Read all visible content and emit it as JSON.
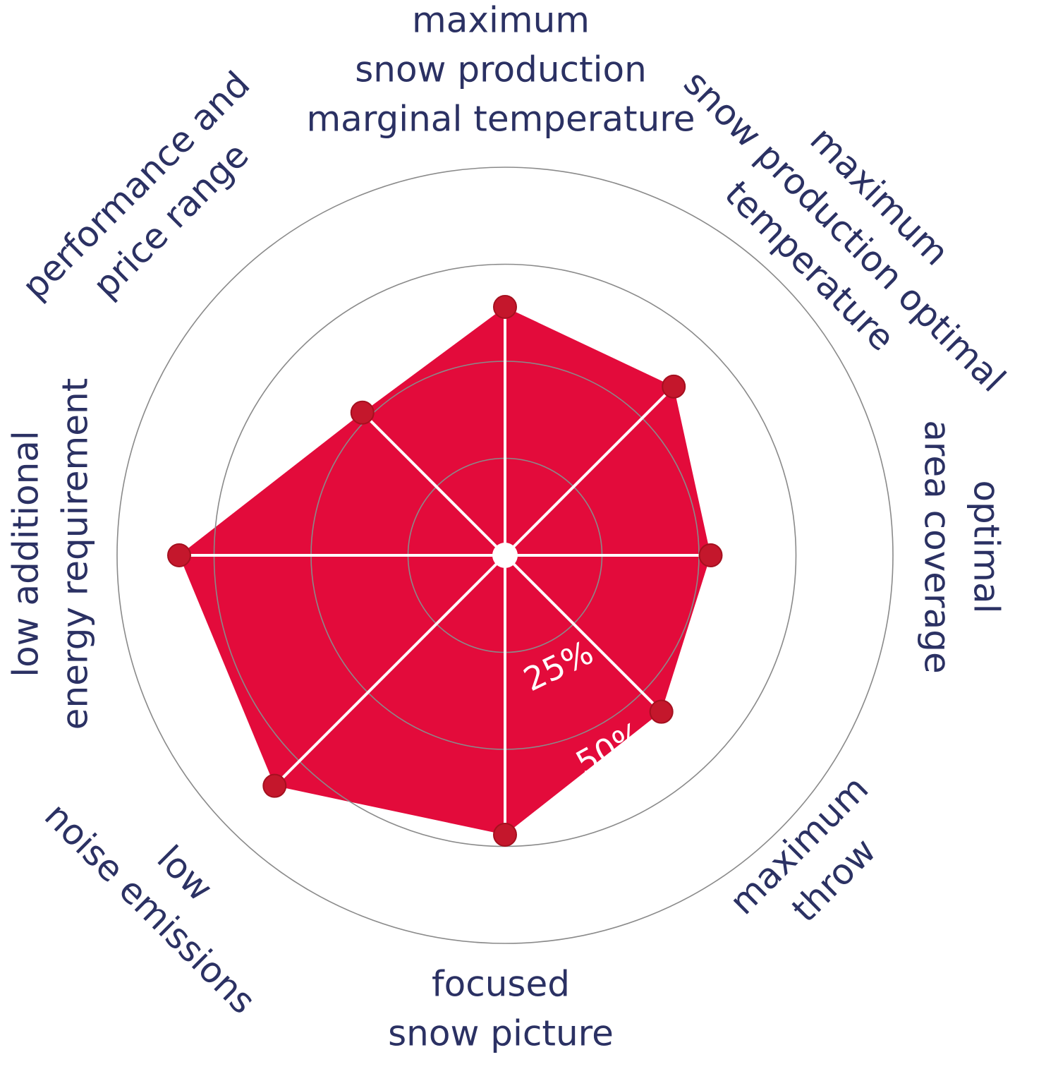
{
  "chart_data": {
    "type": "radar",
    "categories": [
      [
        "maximum",
        "snow production",
        "marginal temperature"
      ],
      [
        "maximum",
        "snow production optimal",
        "temperature"
      ],
      [
        "optimal",
        "area coverage"
      ],
      [
        "maximum",
        "throw"
      ],
      [
        "focused",
        "snow picture"
      ],
      [
        "low",
        "noise emissions"
      ],
      [
        "low additional",
        "energy requirement"
      ],
      [
        "performance and",
        "price range"
      ]
    ],
    "values": [
      64,
      61.5,
      53,
      57,
      72,
      84,
      84,
      52
    ],
    "color": "#e30b3b",
    "marker_color": "#c4172c",
    "rlim": [
      0,
      100
    ],
    "rticks": [
      {
        "value": 25,
        "label": "25%"
      },
      {
        "value": 50,
        "label": "50%"
      },
      75,
      100
    ],
    "grid": true
  }
}
